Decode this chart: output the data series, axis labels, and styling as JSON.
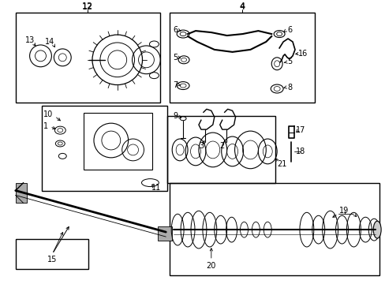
{
  "bg_color": "#ffffff",
  "line_color": "#000000",
  "text_color": "#000000"
}
